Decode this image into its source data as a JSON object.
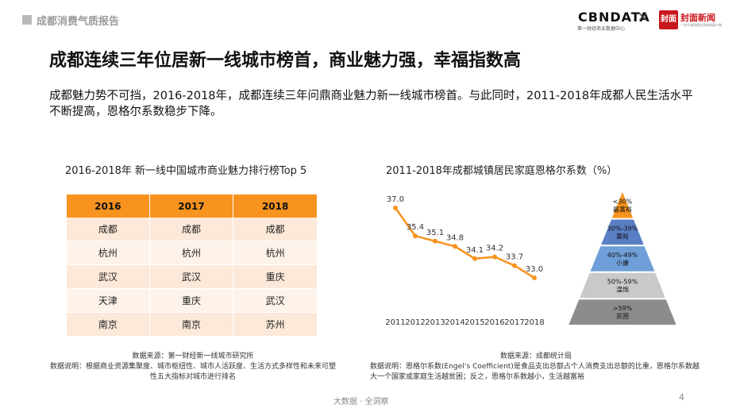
{
  "header": {
    "section": "成都消费气质报告",
    "logo_cbn": "CBNDATA",
    "logo_cbn_sub": "第一财经商业数据中心",
    "logo_fm": "封面新闻",
    "logo_fm_mark": "封面",
    "logo_fm_sub": "一览众城观察信息新闻客户端"
  },
  "title": "成都连续三年位居新一线城市榜首，商业魅力强，幸福指数高",
  "intro": "成都魅力势不可挡，2016-2018年，成都连续三年问鼎商业魅力新一线城市榜首。与此同时，2011-2018年成都人民生活水平不断提高，恩格尔系数稳步下降。",
  "table": {
    "title": "2016-2018年 新一线中国城市商业魅力排行榜Top 5",
    "columns": [
      "2016",
      "2017",
      "2018"
    ],
    "rows": [
      [
        "成都",
        "成都",
        "成都"
      ],
      [
        "杭州",
        "杭州",
        "杭州"
      ],
      [
        "武汉",
        "武汉",
        "重庆"
      ],
      [
        "天津",
        "重庆",
        "武汉"
      ],
      [
        "南京",
        "南京",
        "苏州"
      ]
    ],
    "source": "数据来源：第一财经新一线城市研究所",
    "note": "数据说明：根据商业资源集聚度、城市枢纽性、城市人活跃度、生活方式多样性和未来可塑性五大指标对城市进行排名"
  },
  "chart_data": {
    "type": "line",
    "title": "2011-2018年成都城镇居民家庭恩格尔系数（%）",
    "x": [
      "2011",
      "2012",
      "2013",
      "2014",
      "2015",
      "2016",
      "2017",
      "2018"
    ],
    "series": [
      {
        "values": [
          37.0,
          35.4,
          35.1,
          34.8,
          34.1,
          34.2,
          33.7,
          33.0
        ]
      }
    ],
    "data_labels": [
      "37.0",
      "35.4",
      "35.1",
      "34.8",
      "34.1",
      "34.2",
      "33.7",
      "33.0"
    ],
    "color": "#f7931e",
    "grid": false,
    "yaxis_visible": false,
    "source": "数据来源：成都统计局",
    "note": "数据说明：恩格尔系数(Engel‘s Coefficient)是食品支出总额占个人消费支出总额的比重，恩格尔系数越大一个国家或家庭生活越贫困；反之，恩格尔系数越小，生活越富裕"
  },
  "pyramid": {
    "levels": [
      {
        "label": "<30% 最富裕",
        "color": "#f7931e"
      },
      {
        "label": "30%-39% 富裕",
        "color": "#5b7fc4"
      },
      {
        "label": "40%-49% 小康",
        "color": "#6f9fd8"
      },
      {
        "label": "50%-59% 温饱",
        "color": "#c9c9c9"
      },
      {
        "label": ">59% 贫困",
        "color": "#8c8c8c"
      }
    ]
  },
  "footer": {
    "text": "大数据 · 全洞察",
    "page": "4"
  }
}
